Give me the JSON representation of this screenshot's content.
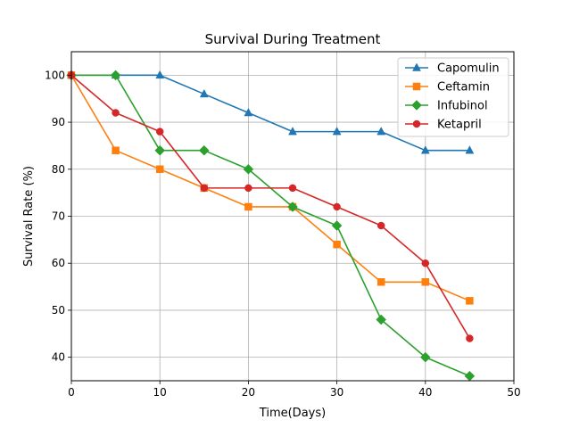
{
  "chart_data": {
    "type": "line",
    "title": "Survival During Treatment",
    "xlabel": "Time(Days)",
    "ylabel": "Survival Rate (%)",
    "xlim": [
      0,
      50
    ],
    "ylim": [
      35,
      105
    ],
    "xticks": [
      0,
      10,
      20,
      30,
      40,
      50
    ],
    "yticks": [
      40,
      50,
      60,
      70,
      80,
      90,
      100
    ],
    "grid": true,
    "legend_position": "top-right",
    "x": [
      0,
      5,
      10,
      15,
      20,
      25,
      30,
      35,
      40,
      45
    ],
    "series": [
      {
        "name": "Capomulin",
        "color": "#1f77b4",
        "marker": "triangle",
        "values": [
          100,
          100,
          100,
          96,
          92,
          88,
          88,
          88,
          84,
          84
        ]
      },
      {
        "name": "Ceftamin",
        "color": "#ff7f0e",
        "marker": "square",
        "values": [
          100,
          84,
          80,
          76,
          72,
          72,
          64,
          56,
          56,
          52
        ]
      },
      {
        "name": "Infubinol",
        "color": "#2ca02c",
        "marker": "diamond",
        "values": [
          100,
          100,
          84,
          84,
          80,
          72,
          68,
          48,
          40,
          36
        ]
      },
      {
        "name": "Ketapril",
        "color": "#d62728",
        "marker": "circle",
        "values": [
          100,
          92,
          88,
          76,
          76,
          76,
          72,
          68,
          60,
          44
        ]
      }
    ]
  }
}
